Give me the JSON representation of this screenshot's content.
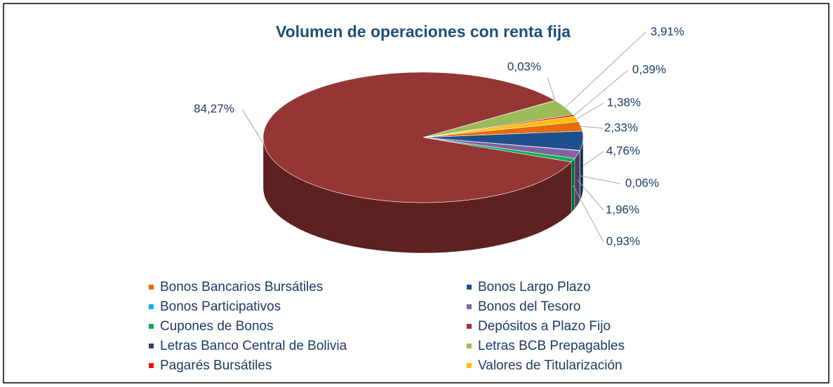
{
  "chart_data": {
    "type": "pie",
    "title": "Volumen de operaciones con renta fija",
    "categories": [
      "Bonos Bancarios Bursátiles",
      "Bonos Largo Plazo",
      "Bonos Participativos",
      "Bonos del Tesoro",
      "Cupones de Bonos",
      "Depósitos a Plazo Fijo",
      "Letras Banco Central de Bolivia",
      "Letras BCB Prepagables",
      "Pagarés Bursátiles",
      "Valores de Titularización"
    ],
    "values": [
      2.33,
      4.76,
      0.06,
      1.96,
      0.93,
      84.27,
      0.03,
      3.91,
      0.39,
      1.38
    ],
    "value_labels": [
      "2,33%",
      "4,76%",
      "0,06%",
      "1,96%",
      "0,93%",
      "84,27%",
      "0,03%",
      "3,91%",
      "0,39%",
      "1,38%"
    ],
    "colors": [
      "#e46c0a",
      "#1f4e8c",
      "#00b0f0",
      "#8064a2",
      "#00b050",
      "#943634",
      "#2b3f6b",
      "#9bbb59",
      "#ff0000",
      "#ffc000"
    ],
    "legend": "bottom"
  }
}
